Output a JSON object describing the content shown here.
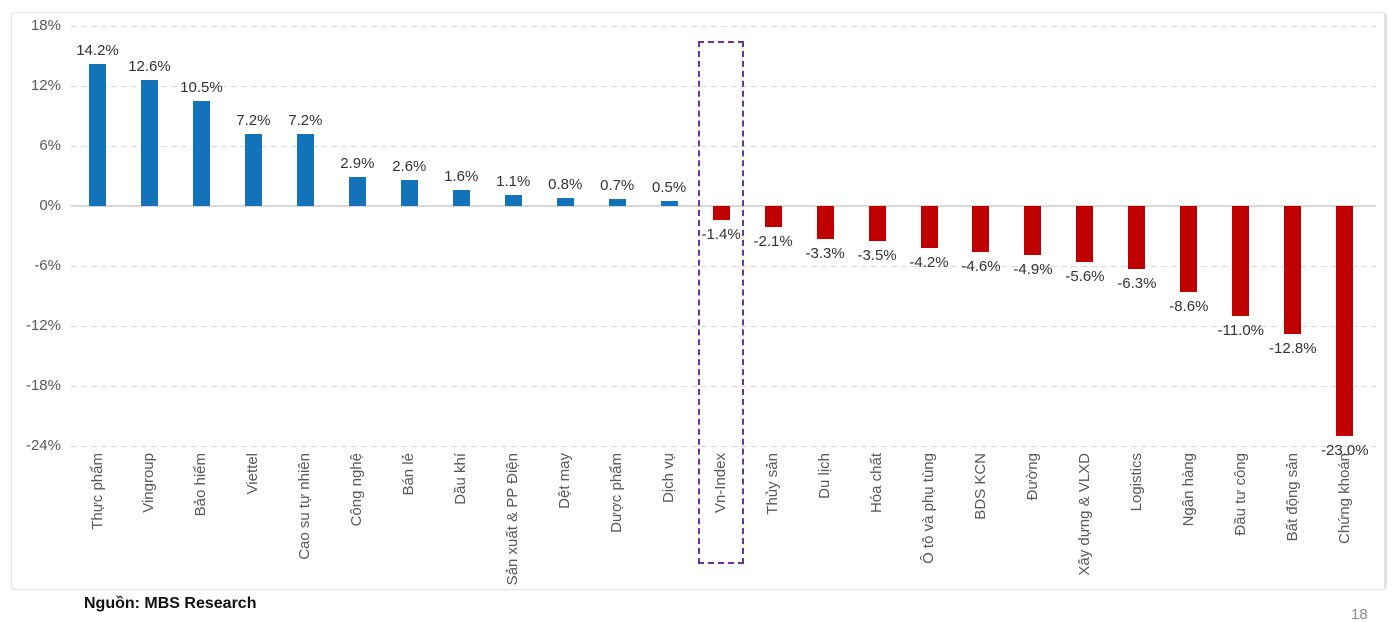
{
  "chart_data": {
    "type": "bar",
    "title": "",
    "xlabel": "",
    "ylabel": "",
    "categories": [
      "Thực phẩm",
      "Vingroup",
      "Bảo hiểm",
      "Viettel",
      "Cao su tự nhiên",
      "Công nghệ",
      "Bán lẻ",
      "Dầu khí",
      "Sản xuất & PP Điện",
      "Dệt may",
      "Dược phẩm",
      "Dịch vụ",
      "Vn-Index",
      "Thủy sản",
      "Du lịch",
      "Hóa chất",
      "Ô tô và phụ tùng",
      "BDS KCN",
      "Đường",
      "Xây dựng & VLXD",
      "Logistics",
      "Ngân hàng",
      "Đầu tư công",
      "Bất động sản",
      "Chứng khoán"
    ],
    "values": [
      14.2,
      12.6,
      10.5,
      7.2,
      7.2,
      2.9,
      2.6,
      1.6,
      1.1,
      0.8,
      0.7,
      0.5,
      -1.4,
      -2.1,
      -3.3,
      -3.5,
      -4.2,
      -4.6,
      -4.9,
      -5.6,
      -6.3,
      -8.6,
      -11.0,
      -12.8,
      -23.0
    ],
    "value_labels": [
      "14.2%",
      "12.6%",
      "10.5%",
      "7.2%",
      "7.2%",
      "2.9%",
      "2.6%",
      "1.6%",
      "1.1%",
      "0.8%",
      "0.7%",
      "0.5%",
      "-1.4%",
      "-2.1%",
      "-3.3%",
      "-3.5%",
      "-4.2%",
      "-4.6%",
      "-4.9%",
      "-5.6%",
      "-6.3%",
      "-8.6%",
      "-11.0%",
      "-12.8%",
      "-23.0%"
    ],
    "y_ticks": [
      "18%",
      "12%",
      "6%",
      "0%",
      "-6%",
      "-12%",
      "-18%",
      "-24%"
    ],
    "y_tick_values": [
      18,
      12,
      6,
      0,
      -6,
      -12,
      -18,
      -24
    ],
    "ylim": [
      -24,
      18
    ],
    "grid": true,
    "legend": false,
    "highlight_category": "Vn-Index",
    "colors": {
      "positive": "#1373b9",
      "negative": "#c00000",
      "highlight_box": "#7030a0",
      "gridline": "#d9d9d9",
      "zero_line": "#d8d8d8",
      "axis_text": "#595959",
      "value_text": "#333333"
    }
  },
  "footer": {
    "source_label": "Nguồn: MBS Research",
    "page_number": "18"
  }
}
